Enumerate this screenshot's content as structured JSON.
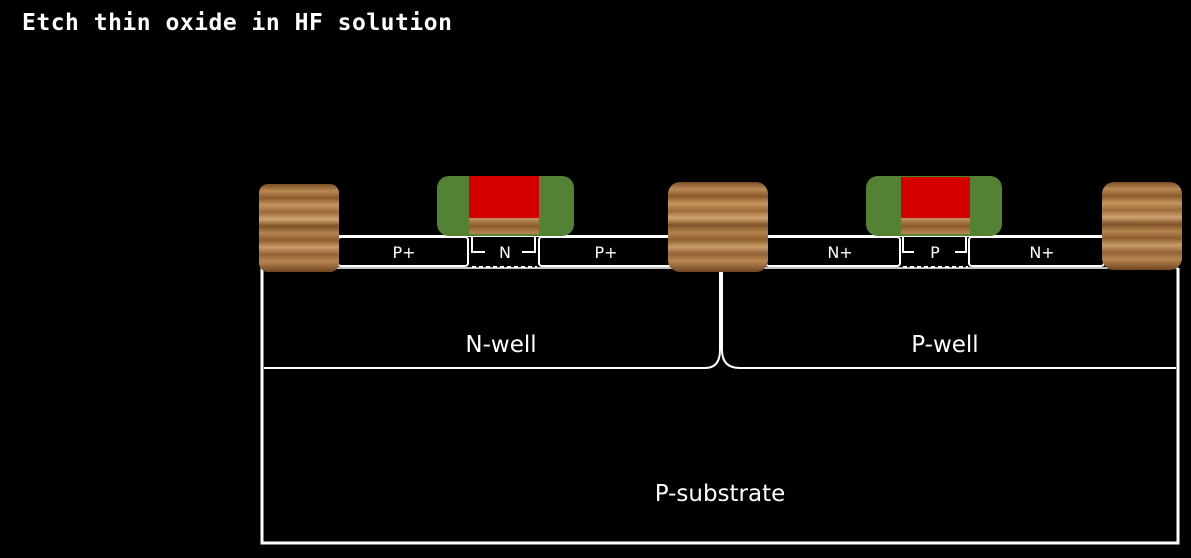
{
  "title": "Etch thin oxide in HF solution",
  "labels": {
    "pmos_source": "P+",
    "pmos_channel": "N",
    "pmos_drain": "P+",
    "nmos_source": "N+",
    "nmos_channel": "P",
    "nmos_drain": "N+",
    "nwell": "N-well",
    "pwell": "P-well",
    "substrate": "P-substrate"
  },
  "colors": {
    "background": "#000000",
    "outline": "#ffffff",
    "gate_poly": "#d40000",
    "gate_spacer": "#548235",
    "field_oxide": "#9a6a3a"
  }
}
